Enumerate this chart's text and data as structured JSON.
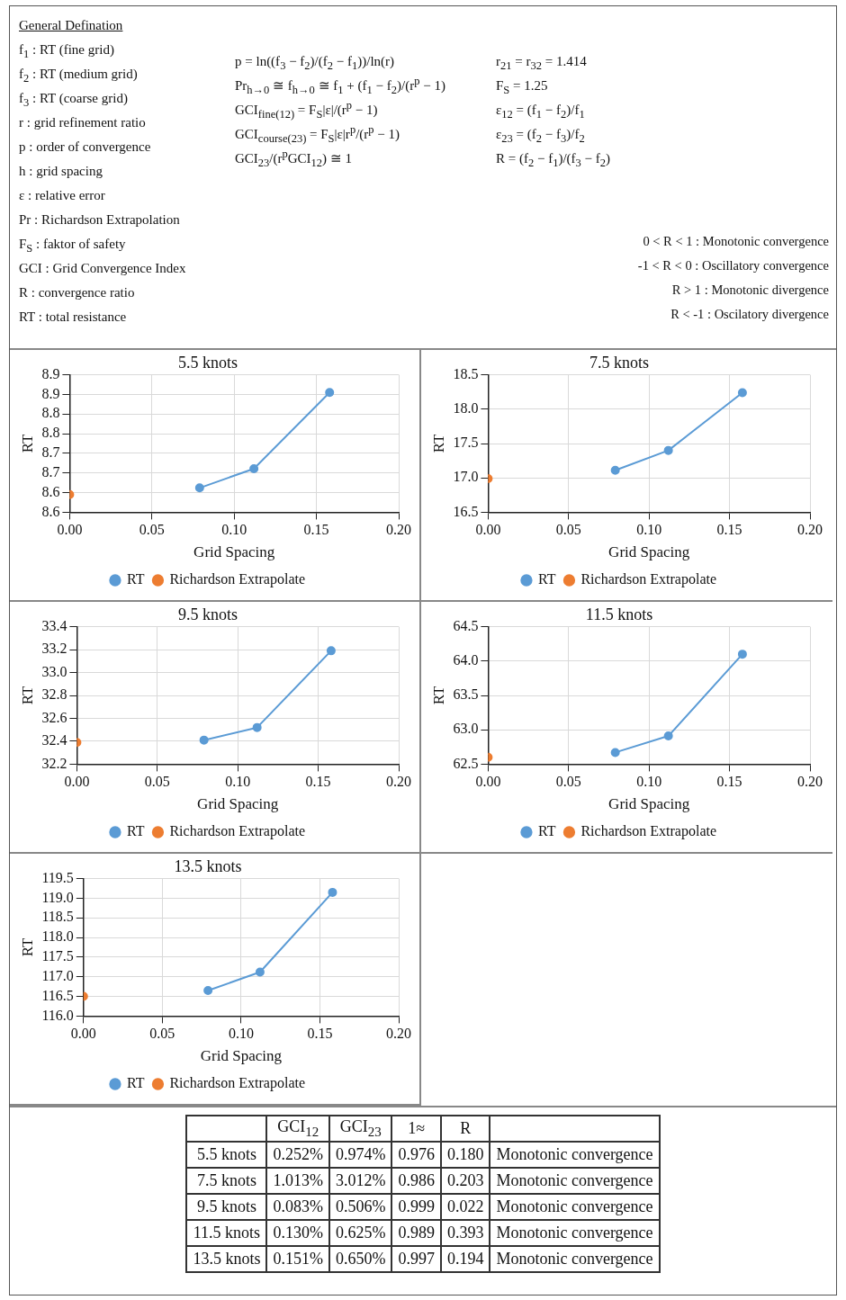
{
  "chart_data": [
    {
      "type": "other",
      "title": "General Defination",
      "annotations": [
        "f$_{1}$ : RT (fine grid)",
        "f$_{2}$ : RT (medium grid)",
        "f$_{3}$ : RT (coarse grid)",
        "r : grid refinement ratio",
        "p : order of convergence",
        "h : grid spacing",
        "ε : relative error",
        "Pr : Richardson Extrapolation",
        "F$_{S}$ : faktor of safety",
        "GCI : Grid Convergence Index",
        "R : convergence ratio",
        "RT : total resistance"
      ]
    },
    {
      "type": "other",
      "annotations": [
        "p = ln((f$_{3}$ − f$_{2}$)/(f$_{2}$ − f$_{1}$))/ln(r)",
        "Pr$_{h→0}$ ≅ f$_{h→0}$ ≅ f$_{1}$ + (f$_{1}$ − f$_{2}$)/(r$^{p}$ − 1)",
        "GCI$_{fine(12)}$ = F$_{S}$|ε|/(r$^{p}$ − 1)",
        "GCI$_{course(23)}$ = F$_{S}$|ε|r$^{p}$/(r$^{p}$ − 1)",
        "GCI$_{23}$/(r$^{p}$GCI$_{12}$) ≅ 1"
      ]
    },
    {
      "type": "other",
      "annotations": [
        "r$_{21}$ = r$_{32}$ = 1.414",
        "F$_{S}$ = 1.25",
        "ε$_{12}$ = (f$_{1}$ − f$_{2}$)/f$_{1}$",
        "ε$_{23}$ = (f$_{2}$ − f$_{3}$)/f$_{2}$",
        "R = (f$_{2}$ − f$_{1}$)/(f$_{3}$ − f$_{2}$)"
      ]
    },
    {
      "type": "other",
      "annotations": [
        "0 < R < 1 : Monotonic convergence",
        "-1 < R < 0 : Oscillatory convergence",
        "R > 1 : Monotonic divergence",
        "R < -1 : Oscilatory divergence"
      ]
    },
    {
      "type": "line",
      "title": "5.5 knots",
      "xlabel": "Grid Spacing",
      "ylabel": "RT",
      "xlim": [
        0,
        0.2
      ],
      "xticks": [
        {
          "value": 0,
          "label": "0.00"
        },
        {
          "value": 0.05,
          "label": "0.05"
        },
        {
          "value": 0.1,
          "label": "0.10"
        },
        {
          "value": 0.15,
          "label": "0.15"
        },
        {
          "value": 0.2,
          "label": "0.20"
        }
      ],
      "ylim": [
        8.55,
        8.9
      ],
      "yticks": [
        {
          "value": 8.55,
          "label": "8.6"
        },
        {
          "value": 8.6,
          "label": "8.6"
        },
        {
          "value": 8.65,
          "label": "8.7"
        },
        {
          "value": 8.7,
          "label": "8.7"
        },
        {
          "value": 8.75,
          "label": "8.8"
        },
        {
          "value": 8.8,
          "label": "8.8"
        },
        {
          "value": 8.85,
          "label": "8.9"
        },
        {
          "value": 8.9,
          "label": "8.9"
        }
      ],
      "grid": true,
      "legend": "bottom",
      "marker": "circle",
      "line_style": "solid",
      "series": [
        {
          "name": "RT",
          "color": "#5b9bd5",
          "x": [
            0.079,
            0.112,
            0.158
          ],
          "values": [
            8.612,
            8.661,
            8.855
          ]
        },
        {
          "name": "Richardson Extrapolate",
          "color": "#ed7d31",
          "x": [
            0
          ],
          "values": [
            8.595
          ]
        }
      ]
    },
    {
      "type": "line",
      "title": "7.5 knots",
      "xlabel": "Grid Spacing",
      "ylabel": "RT",
      "xlim": [
        0,
        0.2
      ],
      "xticks": [
        {
          "value": 0,
          "label": "0.00"
        },
        {
          "value": 0.05,
          "label": "0.05"
        },
        {
          "value": 0.1,
          "label": "0.10"
        },
        {
          "value": 0.15,
          "label": "0.15"
        },
        {
          "value": 0.2,
          "label": "0.20"
        }
      ],
      "ylim": [
        16.5,
        18.5
      ],
      "yticks": [
        16.5,
        {
          "value": 17,
          "label": "17.0"
        },
        17.5,
        {
          "value": 18,
          "label": "18.0"
        },
        18.5
      ],
      "grid": true,
      "legend": "bottom",
      "marker": "circle",
      "line_style": "solid",
      "series": [
        {
          "name": "RT",
          "color": "#5b9bd5",
          "x": [
            0.079,
            0.112,
            0.158
          ],
          "values": [
            17.11,
            17.4,
            18.24
          ]
        },
        {
          "name": "Richardson Extrapolate",
          "color": "#ed7d31",
          "x": [
            0
          ],
          "values": [
            16.99
          ]
        }
      ]
    },
    {
      "type": "line",
      "title": "9.5 knots",
      "xlabel": "Grid Spacing",
      "ylabel": "RT",
      "xlim": [
        0,
        0.2
      ],
      "xticks": [
        {
          "value": 0,
          "label": "0.00"
        },
        {
          "value": 0.05,
          "label": "0.05"
        },
        {
          "value": 0.1,
          "label": "0.10"
        },
        {
          "value": 0.15,
          "label": "0.15"
        },
        {
          "value": 0.2,
          "label": "0.20"
        }
      ],
      "ylim": [
        32.2,
        33.4
      ],
      "yticks": [
        32.2,
        32.4,
        32.6,
        32.8,
        {
          "value": 33,
          "label": "33.0"
        },
        33.2,
        33.4
      ],
      "grid": true,
      "legend": "bottom",
      "marker": "circle",
      "line_style": "solid",
      "series": [
        {
          "name": "RT",
          "color": "#5b9bd5",
          "x": [
            0.079,
            0.112,
            0.158
          ],
          "values": [
            32.41,
            32.52,
            33.19
          ]
        },
        {
          "name": "Richardson Extrapolate",
          "color": "#ed7d31",
          "x": [
            0
          ],
          "values": [
            32.39
          ]
        }
      ]
    },
    {
      "type": "line",
      "title": "11.5 knots",
      "xlabel": "Grid Spacing",
      "ylabel": "RT",
      "xlim": [
        0,
        0.2
      ],
      "xticks": [
        {
          "value": 0,
          "label": "0.00"
        },
        {
          "value": 0.05,
          "label": "0.05"
        },
        {
          "value": 0.1,
          "label": "0.10"
        },
        {
          "value": 0.15,
          "label": "0.15"
        },
        {
          "value": 0.2,
          "label": "0.20"
        }
      ],
      "ylim": [
        62.5,
        64.5
      ],
      "yticks": [
        62.5,
        {
          "value": 63,
          "label": "63.0"
        },
        63.5,
        {
          "value": 64,
          "label": "64.0"
        },
        64.5
      ],
      "grid": true,
      "legend": "bottom",
      "marker": "circle",
      "line_style": "solid",
      "series": [
        {
          "name": "RT",
          "color": "#5b9bd5",
          "x": [
            0.079,
            0.112,
            0.158
          ],
          "values": [
            62.67,
            62.91,
            64.1
          ]
        },
        {
          "name": "Richardson Extrapolate",
          "color": "#ed7d31",
          "x": [
            0
          ],
          "values": [
            62.6
          ]
        }
      ]
    },
    {
      "type": "line",
      "title": "13.5 knots",
      "xlabel": "Grid Spacing",
      "ylabel": "RT",
      "xlim": [
        0,
        0.2
      ],
      "xticks": [
        {
          "value": 0,
          "label": "0.00"
        },
        {
          "value": 0.05,
          "label": "0.05"
        },
        {
          "value": 0.1,
          "label": "0.10"
        },
        {
          "value": 0.15,
          "label": "0.15"
        },
        {
          "value": 0.2,
          "label": "0.20"
        }
      ],
      "ylim": [
        116,
        119.5
      ],
      "yticks": [
        {
          "value": 116,
          "label": "116.0"
        },
        116.5,
        {
          "value": 117,
          "label": "117.0"
        },
        117.5,
        {
          "value": 118,
          "label": "118.0"
        },
        118.5,
        {
          "value": 119,
          "label": "119.0"
        },
        119.5
      ],
      "grid": true,
      "legend": "bottom",
      "marker": "circle",
      "line_style": "solid",
      "series": [
        {
          "name": "RT",
          "color": "#5b9bd5",
          "x": [
            0.079,
            0.112,
            0.158
          ],
          "values": [
            116.65,
            117.12,
            119.15
          ]
        },
        {
          "name": "Richardson Extrapolate",
          "color": "#ed7d31",
          "x": [
            0
          ],
          "values": [
            116.5
          ]
        }
      ]
    },
    {
      "type": "other",
      "categories": [
        null,
        "GCI$_{12}$",
        "GCI$_{23}$",
        "1≈",
        "R",
        null
      ],
      "y_categories": [
        "5.5 knots",
        "7.5 knots",
        "9.5 knots",
        "11.5 knots",
        "13.5 knots"
      ],
      "cell_labels": [
        [
          "0.252%",
          "0.974%",
          "0.976",
          "0.180",
          "Monotonic convergence"
        ],
        [
          "1.013%",
          "3.012%",
          "0.986",
          "0.203",
          "Monotonic convergence"
        ],
        [
          "0.083%",
          "0.506%",
          "0.999",
          "0.022",
          "Monotonic convergence"
        ],
        [
          "0.130%",
          "0.625%",
          "0.989",
          "0.393",
          "Monotonic convergence"
        ],
        [
          "0.151%",
          "0.650%",
          "0.997",
          "0.194",
          "Monotonic convergence"
        ]
      ]
    }
  ]
}
